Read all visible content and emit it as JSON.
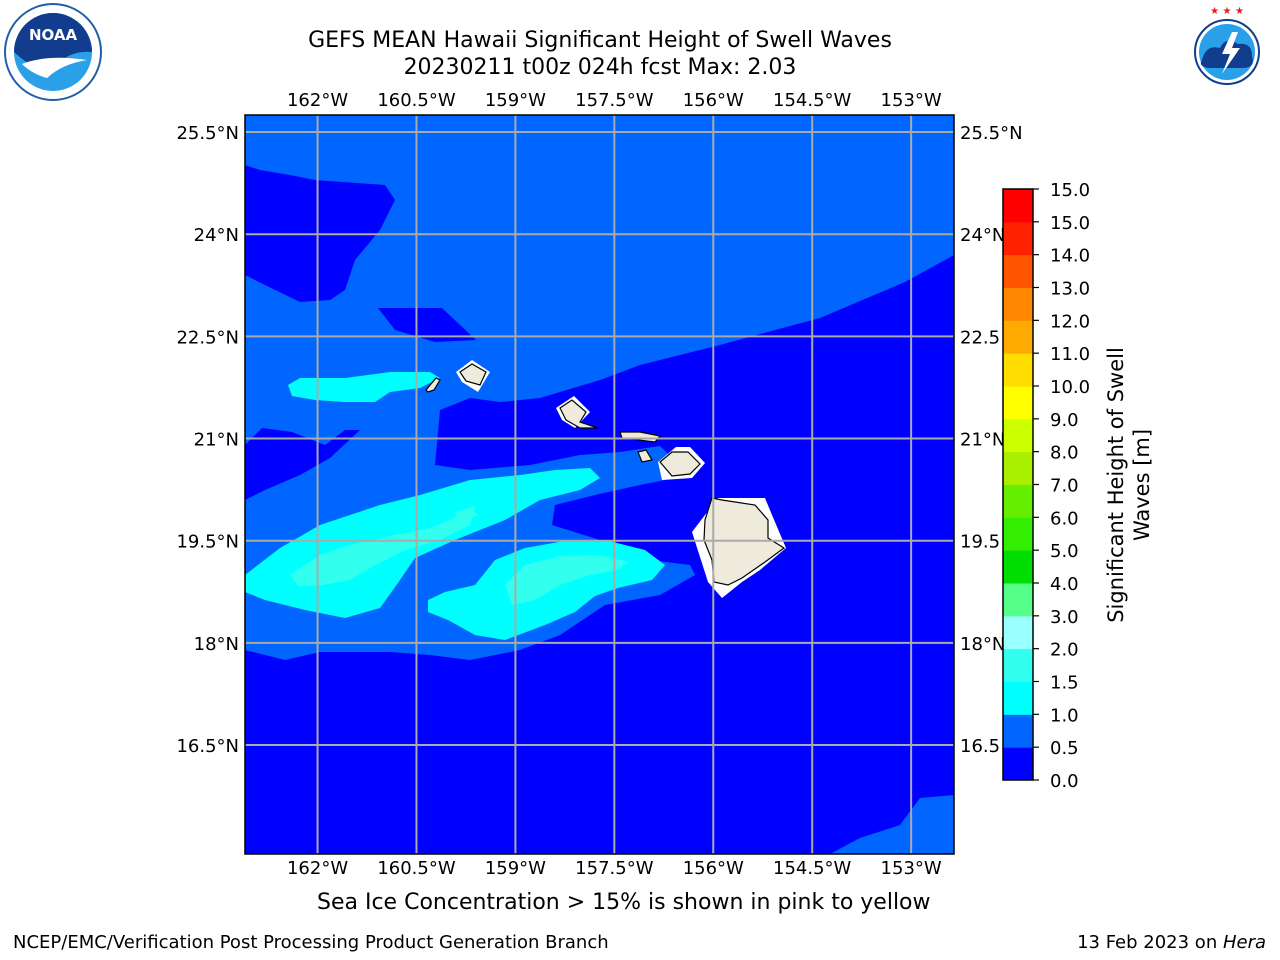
{
  "header": {
    "title": "GEFS MEAN Hawaii Significant Height of Swell Waves",
    "subtitle": "20230211 t00z 024h fcst   Max: 2.03"
  },
  "logos": {
    "left": {
      "name": "noaa-logo",
      "text": "NOAA"
    },
    "right": {
      "name": "nws-logo",
      "text": "NATIONAL WEATHER SERVICE"
    }
  },
  "map": {
    "lon_range": [
      -163.1,
      -152.35
    ],
    "lat_range": [
      14.9,
      25.75
    ],
    "lon_ticks": [
      {
        "value": -162,
        "label": "162°W"
      },
      {
        "value": -160.5,
        "label": "160.5°W"
      },
      {
        "value": -159,
        "label": "159°W"
      },
      {
        "value": -157.5,
        "label": "157.5°W"
      },
      {
        "value": -156,
        "label": "156°W"
      },
      {
        "value": -154.5,
        "label": "154.5°W"
      },
      {
        "value": -153,
        "label": "153°W"
      }
    ],
    "lat_ticks": [
      {
        "value": 25.5,
        "label": "25.5°N",
        "right_label": "25.5°N"
      },
      {
        "value": 24,
        "label": "24°N",
        "right_label": "24°N"
      },
      {
        "value": 22.5,
        "label": "22.5°N",
        "right_label": "22.5"
      },
      {
        "value": 21,
        "label": "21°N",
        "right_label": "21°N"
      },
      {
        "value": 19.5,
        "label": "19.5°N",
        "right_label": "19.5"
      },
      {
        "value": 18,
        "label": "18°N",
        "right_label": "18°N"
      },
      {
        "value": 16.5,
        "label": "16.5°N",
        "right_label": "16.5"
      }
    ]
  },
  "colorbar": {
    "label": "Significant Height of Swell Waves [m]",
    "label_lines": [
      "Significant Height of Swell",
      "Waves [m]"
    ],
    "levels": [
      {
        "value": "0.0",
        "color": "#0000ff"
      },
      {
        "value": "0.5",
        "color": "#0066ff"
      },
      {
        "value": "1.0",
        "color": "#00ffff"
      },
      {
        "value": "1.5",
        "color": "#33ffee"
      },
      {
        "value": "2.0",
        "color": "#99ffff"
      },
      {
        "value": "3.0",
        "color": "#55ff88"
      },
      {
        "value": "4.0",
        "color": "#00dd00"
      },
      {
        "value": "5.0",
        "color": "#33ee00"
      },
      {
        "value": "6.0",
        "color": "#66ee00"
      },
      {
        "value": "7.0",
        "color": "#aaee00"
      },
      {
        "value": "8.0",
        "color": "#ccff00"
      },
      {
        "value": "9.0",
        "color": "#ffff00"
      },
      {
        "value": "10.0",
        "color": "#ffdd00"
      },
      {
        "value": "11.0",
        "color": "#ffaa00"
      },
      {
        "value": "12.0",
        "color": "#ff8800"
      },
      {
        "value": "13.0",
        "color": "#ff5500"
      },
      {
        "value": "14.0",
        "color": "#ff2200"
      },
      {
        "value": "15.0",
        "color": "#ff0000"
      }
    ]
  },
  "note": "Sea Ice Concentration > 15% is shown in pink to yellow",
  "footer": {
    "left": "NCEP/EMC/Verification Post Processing Product Generation Branch",
    "right_date": "13 Feb 2023 on ",
    "right_machine": "Hera"
  },
  "colors": {
    "band_0": "#0000ff",
    "band_05": "#0066ff",
    "band_1": "#00ffff",
    "band_15": "#33ffee",
    "land": "#efebdc",
    "grid": "#aaaaaa"
  }
}
